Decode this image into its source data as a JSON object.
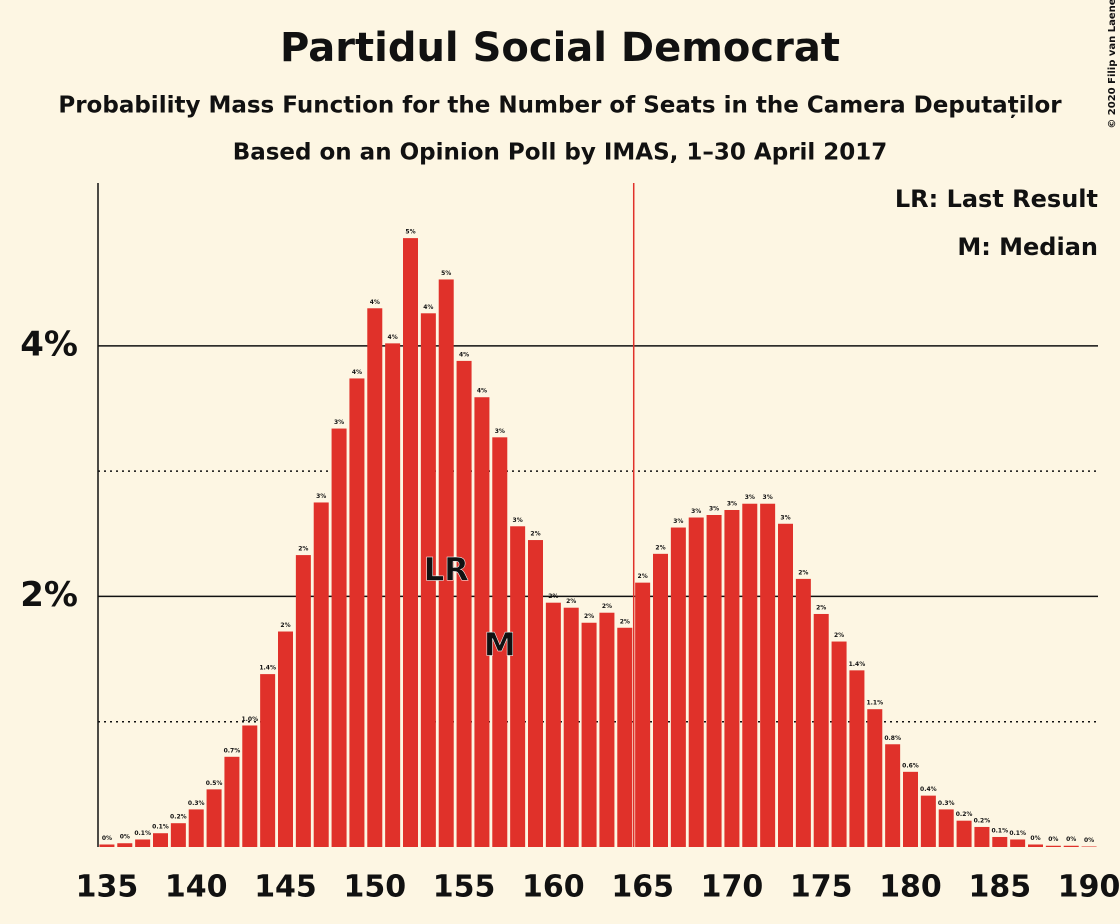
{
  "chart_data": {
    "type": "bar",
    "title": "Partidul Social Democrat",
    "subtitle": "Probability Mass Function for the Number of Seats in the Camera Deputaților",
    "subtitle2": "Based on an Opinion Poll by IMAS, 1–30 April 2017",
    "copyright": "© 2020 Filip van Laenen",
    "color": "#e0312a",
    "x": [
      135,
      136,
      137,
      138,
      139,
      140,
      141,
      142,
      143,
      144,
      145,
      146,
      147,
      148,
      149,
      150,
      151,
      152,
      153,
      154,
      155,
      156,
      157,
      158,
      159,
      160,
      161,
      162,
      163,
      164,
      165,
      166,
      167,
      168,
      169,
      170,
      171,
      172,
      173,
      174,
      175,
      176,
      177,
      178,
      179,
      180,
      181,
      182,
      183,
      184,
      185,
      186,
      187,
      188,
      189,
      190
    ],
    "values": [
      0.02,
      0.03,
      0.06,
      0.11,
      0.19,
      0.3,
      0.46,
      0.72,
      0.97,
      1.38,
      1.72,
      2.33,
      2.75,
      3.34,
      3.74,
      4.3,
      4.02,
      4.86,
      4.26,
      4.53,
      3.88,
      3.59,
      3.27,
      2.56,
      2.45,
      1.95,
      1.91,
      1.79,
      1.87,
      1.75,
      2.11,
      2.34,
      2.55,
      2.63,
      2.65,
      2.69,
      2.74,
      2.74,
      2.58,
      2.14,
      1.86,
      1.64,
      1.41,
      1.1,
      0.82,
      0.6,
      0.41,
      0.3,
      0.21,
      0.16,
      0.08,
      0.06,
      0.02,
      0.01,
      0.01,
      0.004
    ],
    "value_labels": [
      "0%",
      "0%",
      "0.1%",
      "0.1%",
      "0.2%",
      "0.3%",
      "0.5%",
      "0.7%",
      "1.0%",
      "1.4%",
      "2%",
      "2%",
      "3%",
      "3%",
      "4%",
      "4%",
      "4%",
      "5%",
      "4%",
      "5%",
      "4%",
      "4%",
      "3%",
      "3%",
      "2%",
      "2%",
      "2%",
      "2%",
      "2%",
      "2%",
      "2%",
      "2%",
      "3%",
      "3%",
      "3%",
      "3%",
      "3%",
      "3%",
      "3%",
      "2%",
      "2%",
      "2%",
      "1.4%",
      "1.1%",
      "0.8%",
      "0.6%",
      "0.4%",
      "0.3%",
      "0.2%",
      "0.2%",
      "0.1%",
      "0.1%",
      "0%",
      "0%",
      "0%",
      "0%"
    ],
    "xlim": [
      134.5,
      190.5
    ],
    "xticks": [
      135,
      140,
      145,
      150,
      155,
      160,
      165,
      170,
      175,
      180,
      185,
      190
    ],
    "ylim": [
      0,
      5.3
    ],
    "yticks": [
      {
        "value": 2,
        "label": "2%"
      },
      {
        "value": 4,
        "label": "4%"
      }
    ],
    "minor_gridlines": [
      1,
      3
    ],
    "majority_line": {
      "x": 164.5,
      "color": "#e0312a"
    },
    "annotations": [
      {
        "text": "LR",
        "x": 154,
        "y": 2.2
      },
      {
        "text": "M",
        "x": 157,
        "y": 1.6
      }
    ],
    "legend": [
      "LR: Last Result",
      "M: Median"
    ]
  }
}
